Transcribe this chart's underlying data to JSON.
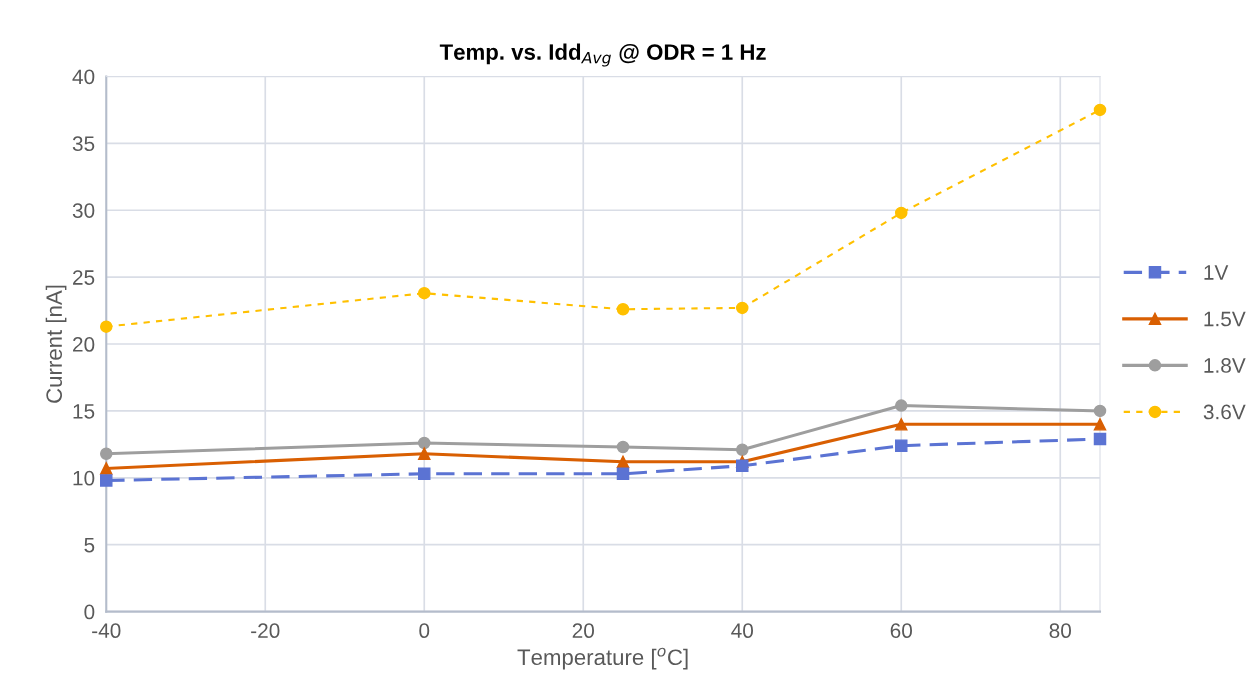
{
  "chart_data": {
    "type": "line",
    "title": "Temp. vs. Idd$_{Avg}$ @ ODR = 1 Hz",
    "xlabel": "Temperature [$^{o}$C]",
    "ylabel": "Current [nA]",
    "x": [
      -40,
      0,
      25,
      40,
      60,
      85
    ],
    "series": [
      {
        "name": "1V",
        "color": "#5b73d3",
        "marker": "square",
        "line_style": "dashed",
        "values": [
          9.8,
          10.3,
          10.3,
          10.9,
          12.4,
          12.9
        ]
      },
      {
        "name": "1.5V",
        "color": "#d95f02",
        "marker": "triangle",
        "line_style": "solid",
        "values": [
          10.7,
          11.8,
          11.2,
          11.2,
          14.0,
          14.0
        ]
      },
      {
        "name": "1.8V",
        "color": "#9e9e9e",
        "marker": "circle",
        "line_style": "solid",
        "values": [
          11.8,
          12.6,
          12.3,
          12.1,
          15.4,
          15.0
        ]
      },
      {
        "name": "3.6V",
        "color": "#ffc000",
        "marker": "circle",
        "line_style": "dotted",
        "values": [
          21.3,
          23.8,
          22.6,
          22.7,
          29.8,
          37.5
        ]
      }
    ],
    "xlim": [
      -40,
      85
    ],
    "xticks": [
      -40,
      -20,
      0,
      20,
      40,
      60,
      80
    ],
    "ylim": [
      0,
      40
    ],
    "yticks": [
      0,
      5,
      10,
      15,
      20,
      25,
      30,
      35,
      40
    ],
    "grid": true,
    "legend": "right"
  }
}
